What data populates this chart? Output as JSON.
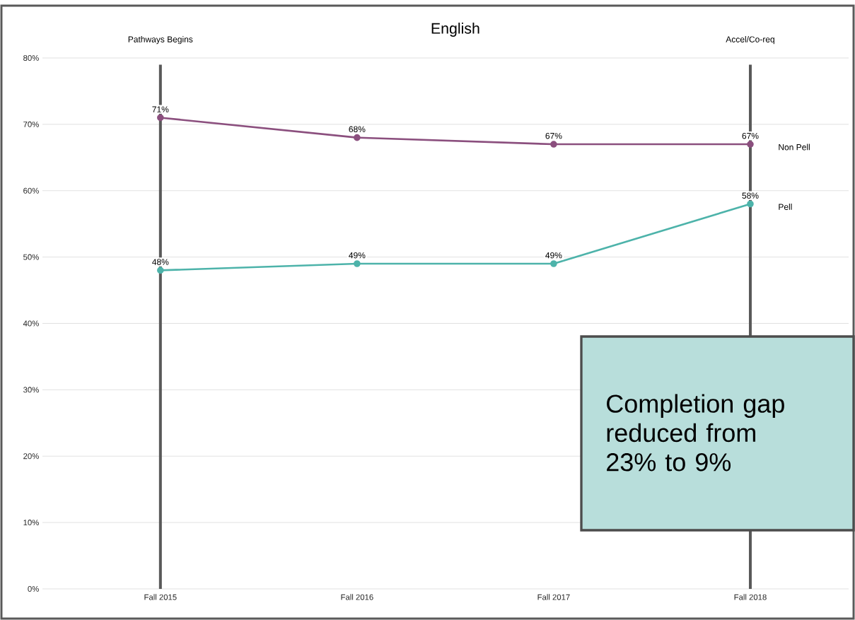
{
  "chart_data": {
    "type": "line",
    "title": "English",
    "categories": [
      "Fall 2015",
      "Fall 2016",
      "Fall 2017",
      "Fall 2018"
    ],
    "series": [
      {
        "name": "Non Pell",
        "color": "#8b4f7e",
        "values": [
          71,
          68,
          67,
          67
        ],
        "value_labels": [
          "71%",
          "68%",
          "67%",
          "67%"
        ]
      },
      {
        "name": "Pell",
        "color": "#4db3aa",
        "values": [
          48,
          49,
          49,
          58
        ],
        "value_labels": [
          "48%",
          "49%",
          "49%",
          "58%"
        ]
      }
    ],
    "ylim": [
      0,
      80
    ],
    "yticks": [
      {
        "value": 0,
        "label": "0%"
      },
      {
        "value": 10,
        "label": "10%"
      },
      {
        "value": 20,
        "label": "20%"
      },
      {
        "value": 30,
        "label": "30%"
      },
      {
        "value": 40,
        "label": "40%"
      },
      {
        "value": 50,
        "label": "50%"
      },
      {
        "value": 60,
        "label": "60%"
      },
      {
        "value": 70,
        "label": "70%"
      },
      {
        "value": 80,
        "label": "80%"
      }
    ],
    "ref_lines": [
      {
        "axis": "x",
        "value": "Fall 2015",
        "label": "Pathways Begins",
        "color": "#595959"
      },
      {
        "axis": "x",
        "value": "Fall 2018",
        "label": "Accel/Co-req",
        "color": "#595959"
      }
    ],
    "annotations": [
      "Completion gap reduced from 23% to 9%"
    ],
    "grid": "y",
    "marker": "circle",
    "line_style": "solid"
  }
}
